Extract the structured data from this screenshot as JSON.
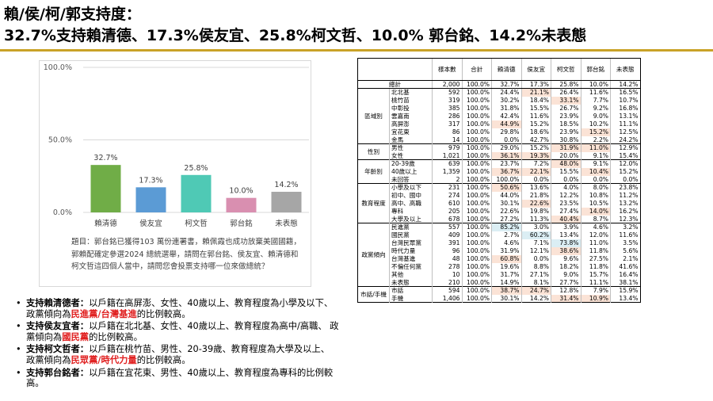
{
  "title_line1": "賴/侯/柯/郭支持度：",
  "title_line2": "32.7%支持賴清德、17.3%侯友宜、25.8%柯文哲、10.0% 郭台銘、14.2%未表態",
  "chart_data": {
    "type": "bar",
    "categories": [
      "賴清德",
      "侯友宜",
      "柯文哲",
      "郭台銘",
      "未表態"
    ],
    "values": [
      32.7,
      17.3,
      25.8,
      10.0,
      14.2
    ],
    "value_labels": [
      "32.7%",
      "17.3%",
      "25.8%",
      "10.0%",
      "14.2%"
    ],
    "colors": [
      "#70ad47",
      "#5b9bd5",
      "#4fc9b5",
      "#d98fb0",
      "#a6a6a6"
    ],
    "ylim": [
      0,
      100
    ],
    "yticks": [
      "100.0%",
      "50.0%",
      "0.0%"
    ],
    "title": "",
    "xlabel": "",
    "ylabel": ""
  },
  "note": "題目：郭台銘已獲得103 萬份連署書，賴佩霞也成功放棄美國國籍，郭賴配確定參選2024 總統選舉，請問在郭台銘、侯友宜、賴清德和柯文哲這四個人當中，請問您會投票支持哪一位來做總統？",
  "bullets": [
    {
      "lead": "支持賴清德者：",
      "text": "以戶籍在高屏澎、女性、40歲以上、教育程度為小學及以下、 政黨傾向為",
      "red": "民進黨/台灣基進",
      "tail": "的比例較高。"
    },
    {
      "lead": "支持侯友宜者：",
      "text": "以戶籍在北北基、女性、40歲以上、教育程度為高中/高職、 政黨傾向為",
      "red": "國民黨",
      "tail": "的比例較高。"
    },
    {
      "lead": "支持柯文哲者：",
      "text": "以戶籍在桃竹苗、男性、20-39歲、教育程度為大學及以上、 政黨傾向為",
      "red": "民眾黨/時代力量",
      "tail": "的比例較高。"
    },
    {
      "lead": "支持郭台銘者：",
      "text": "以戶籍在宜花東、男性、40歲以上、教育程度為專科的比例較高。",
      "red": "",
      "tail": ""
    }
  ],
  "table": {
    "headers": [
      "樣本數",
      "合計",
      "賴清德",
      "侯友宜",
      "柯文哲",
      "郭台銘",
      "未表態"
    ],
    "total": {
      "label": "總計",
      "cells": [
        "2,000",
        "100.0%",
        "32.7%",
        "17.3%",
        "25.8%",
        "10.0%",
        "14.2%"
      ]
    },
    "groups": [
      {
        "name": "區域別",
        "rows": [
          {
            "label": "北北基",
            "cells": [
              "592",
              "100.0%",
              "24.4%",
              "21.1%",
              "26.4%",
              "11.6%",
              "16.5%"
            ],
            "hl": [
              3
            ]
          },
          {
            "label": "桃竹苗",
            "cells": [
              "319",
              "100.0%",
              "30.2%",
              "18.4%",
              "33.1%",
              "7.7%",
              "10.7%"
            ],
            "hl": [
              4
            ]
          },
          {
            "label": "中彰投",
            "cells": [
              "385",
              "100.0%",
              "31.8%",
              "15.5%",
              "26.7%",
              "9.2%",
              "16.8%"
            ],
            "hl": []
          },
          {
            "label": "雲嘉南",
            "cells": [
              "286",
              "100.0%",
              "42.4%",
              "11.6%",
              "23.9%",
              "9.0%",
              "13.1%"
            ],
            "hl": []
          },
          {
            "label": "高屏澎",
            "cells": [
              "317",
              "100.0%",
              "44.9%",
              "15.2%",
              "18.5%",
              "10.2%",
              "11.1%"
            ],
            "hl": [
              2
            ]
          },
          {
            "label": "宜花東",
            "cells": [
              "86",
              "100.0%",
              "29.8%",
              "18.6%",
              "23.9%",
              "15.2%",
              "12.5%"
            ],
            "hl": [
              5
            ]
          },
          {
            "label": "金馬",
            "cells": [
              "14",
              "100.0%",
              "0.0%",
              "42.7%",
              "30.8%",
              "2.2%",
              "24.2%"
            ],
            "hl": []
          }
        ]
      },
      {
        "name": "性別",
        "rows": [
          {
            "label": "男性",
            "cells": [
              "979",
              "100.0%",
              "29.0%",
              "15.2%",
              "31.9%",
              "11.0%",
              "12.9%"
            ],
            "hl": [
              4,
              5
            ]
          },
          {
            "label": "女性",
            "cells": [
              "1,021",
              "100.0%",
              "36.1%",
              "19.3%",
              "20.0%",
              "9.1%",
              "15.4%"
            ],
            "hl": [
              2,
              3
            ]
          }
        ]
      },
      {
        "name": "年齡別",
        "rows": [
          {
            "label": "20-39歲",
            "cells": [
              "639",
              "100.0%",
              "23.7%",
              "7.2%",
              "48.0%",
              "9.1%",
              "12.0%"
            ],
            "hl": [
              4
            ]
          },
          {
            "label": "40歲以上",
            "cells": [
              "1,359",
              "100.0%",
              "36.7%",
              "22.1%",
              "15.5%",
              "10.4%",
              "15.2%"
            ],
            "hl": [
              2,
              3,
              5
            ]
          },
          {
            "label": "未回答",
            "cells": [
              "2",
              "100.0%",
              "100.0%",
              "0.0%",
              "0.0%",
              "0.0%",
              "0.0%"
            ],
            "hl": []
          }
        ]
      },
      {
        "name": "教育程度",
        "rows": [
          {
            "label": "小學及以下",
            "cells": [
              "231",
              "100.0%",
              "50.6%",
              "13.6%",
              "4.0%",
              "8.0%",
              "23.8%"
            ],
            "hl": [
              2
            ]
          },
          {
            "label": "初中、國中",
            "cells": [
              "274",
              "100.0%",
              "44.0%",
              "21.8%",
              "12.2%",
              "10.8%",
              "11.2%"
            ],
            "hl": []
          },
          {
            "label": "高中、高職",
            "cells": [
              "610",
              "100.0%",
              "30.1%",
              "22.6%",
              "23.5%",
              "10.5%",
              "13.2%"
            ],
            "hl": [
              3
            ]
          },
          {
            "label": "專科",
            "cells": [
              "205",
              "100.0%",
              "22.6%",
              "19.8%",
              "27.4%",
              "14.0%",
              "16.2%"
            ],
            "hl": [
              5
            ]
          },
          {
            "label": "大學及以上",
            "cells": [
              "678",
              "100.0%",
              "27.2%",
              "11.3%",
              "40.4%",
              "8.7%",
              "12.3%"
            ],
            "hl": [
              4
            ]
          }
        ]
      },
      {
        "name": "政黨傾向",
        "rows": [
          {
            "label": "民進黨",
            "cells": [
              "557",
              "100.0%",
              "85.2%",
              "3.0%",
              "3.9%",
              "4.6%",
              "3.2%"
            ],
            "hl": [],
            "hb": [
              2
            ]
          },
          {
            "label": "國民黨",
            "cells": [
              "409",
              "100.0%",
              "2.7%",
              "60.2%",
              "13.4%",
              "12.0%",
              "11.6%"
            ],
            "hl": [],
            "hb": [
              3
            ]
          },
          {
            "label": "台灣民眾黨",
            "cells": [
              "391",
              "100.0%",
              "4.6%",
              "7.1%",
              "73.8%",
              "11.0%",
              "3.5%"
            ],
            "hl": [],
            "hb": [
              4
            ]
          },
          {
            "label": "時代力量",
            "cells": [
              "96",
              "100.0%",
              "31.9%",
              "12.1%",
              "38.6%",
              "11.8%",
              "5.6%"
            ],
            "hl": [
              4
            ]
          },
          {
            "label": "台灣基進",
            "cells": [
              "48",
              "100.0%",
              "60.8%",
              "0.0%",
              "9.6%",
              "27.5%",
              "2.1%"
            ],
            "hl": [
              2
            ]
          },
          {
            "label": "不偏任何黨",
            "cells": [
              "278",
              "100.0%",
              "19.6%",
              "8.8%",
              "18.2%",
              "11.8%",
              "41.6%"
            ],
            "hl": []
          },
          {
            "label": "其他",
            "cells": [
              "10",
              "100.0%",
              "31.7%",
              "27.1%",
              "9.0%",
              "15.7%",
              "16.4%"
            ],
            "hl": []
          },
          {
            "label": "未表態",
            "cells": [
              "210",
              "100.0%",
              "14.9%",
              "8.1%",
              "27.7%",
              "11.1%",
              "38.1%"
            ],
            "hl": []
          }
        ]
      },
      {
        "name": "市話/手機",
        "rows": [
          {
            "label": "市話",
            "cells": [
              "594",
              "100.0%",
              "38.7%",
              "24.7%",
              "12.8%",
              "7.9%",
              "15.9%"
            ],
            "hl": [
              2,
              3
            ]
          },
          {
            "label": "手機",
            "cells": [
              "1,406",
              "100.0%",
              "30.1%",
              "14.2%",
              "31.4%",
              "10.9%",
              "13.4%"
            ],
            "hl": [
              4,
              5
            ]
          }
        ]
      }
    ]
  }
}
